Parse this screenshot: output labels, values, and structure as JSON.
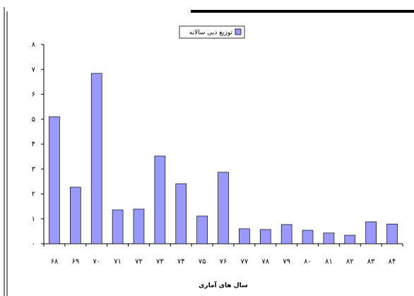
{
  "chart_data": {
    "type": "bar",
    "legend_label": "توزیع دبی سالانه",
    "x_label": "سال های آماری",
    "categories": [
      "۶۸",
      "۶۹",
      "۷۰",
      "۷۱",
      "۷۲",
      "۷۳",
      "۷۴",
      "۷۵",
      "۷۶",
      "۷۷",
      "۷۸",
      "۷۹",
      "۸۰",
      "۸۱",
      "۸۲",
      "۸۳",
      "۸۴"
    ],
    "values": [
      5.1,
      2.27,
      6.84,
      1.36,
      1.39,
      3.52,
      2.41,
      1.11,
      2.87,
      0.6,
      0.57,
      0.77,
      0.54,
      0.43,
      0.34,
      0.88,
      0.79
    ],
    "color": "#9999ff",
    "ylim": [
      0,
      8
    ],
    "yticks": [
      {
        "value": 0,
        "label": "۰"
      },
      {
        "value": 1,
        "label": "۱"
      },
      {
        "value": 2,
        "label": "۲"
      },
      {
        "value": 3,
        "label": "۳"
      },
      {
        "value": 4,
        "label": "۴"
      },
      {
        "value": 5,
        "label": "۵"
      },
      {
        "value": 6,
        "label": "۶"
      },
      {
        "value": 7,
        "label": "۷"
      },
      {
        "value": 8,
        "label": "۸"
      }
    ],
    "grid": false
  }
}
